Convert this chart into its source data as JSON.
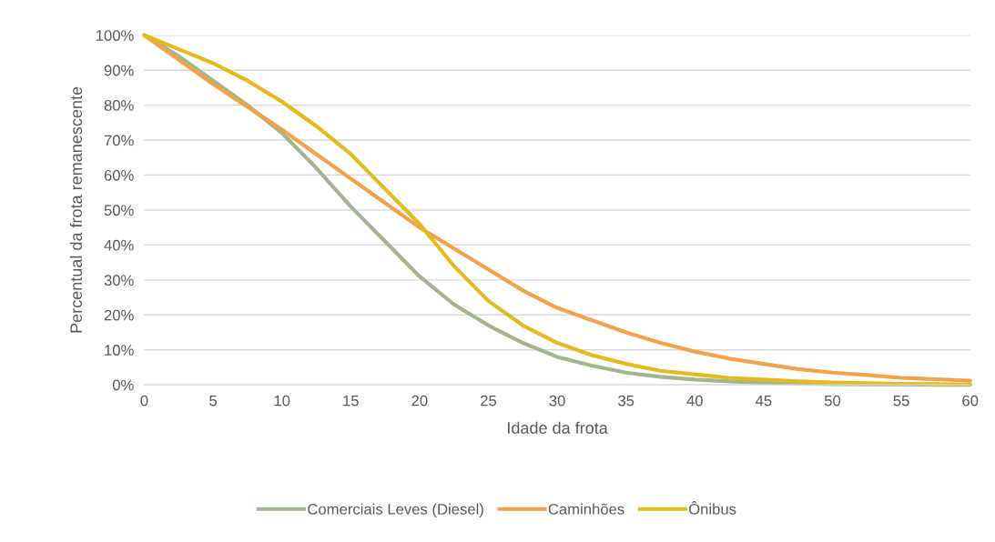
{
  "chart_data": {
    "type": "line",
    "xlabel": "Idade da frota",
    "ylabel": "Percentual da frota remanescente",
    "x": [
      0,
      2.5,
      5,
      7.5,
      10,
      12.5,
      15,
      17.5,
      20,
      22.5,
      25,
      27.5,
      30,
      32.5,
      35,
      37.5,
      40,
      42.5,
      45,
      47.5,
      50,
      52.5,
      55,
      57.5,
      60
    ],
    "series": [
      {
        "name": "Comerciais Leves (Diesel)",
        "color": "#9fb78c",
        "values": [
          100,
          94,
          87,
          80,
          72,
          62,
          51,
          41,
          31,
          23,
          17,
          12,
          8,
          5.5,
          3.5,
          2.3,
          1.5,
          1,
          0.6,
          0.4,
          0.2,
          0.1,
          0.1,
          0,
          0
        ]
      },
      {
        "name": "Caminhões",
        "color": "#f3a24a",
        "values": [
          100,
          93,
          86,
          79.5,
          73,
          66,
          59,
          52,
          45,
          39,
          33,
          27,
          22,
          18.5,
          15,
          12,
          9.5,
          7.5,
          6,
          4.5,
          3.5,
          2.8,
          2,
          1.6,
          1.2
        ]
      },
      {
        "name": "Ônibus",
        "color": "#e6b91e",
        "values": [
          100,
          96,
          92,
          87,
          81,
          74,
          66,
          56,
          46,
          34,
          24,
          17,
          12,
          8.5,
          6,
          4,
          3,
          2,
          1.5,
          1,
          0.7,
          0.5,
          0.3,
          0.2,
          0.1
        ]
      }
    ],
    "xlim": [
      0,
      60
    ],
    "xticks": [
      0,
      5,
      10,
      15,
      20,
      25,
      30,
      35,
      40,
      45,
      50,
      55,
      60
    ],
    "ylim": [
      0,
      100
    ],
    "yticks": [
      {
        "value": 0,
        "label": "0%"
      },
      {
        "value": 10,
        "label": "10%"
      },
      {
        "value": 20,
        "label": "20%"
      },
      {
        "value": 30,
        "label": "30%"
      },
      {
        "value": 40,
        "label": "40%"
      },
      {
        "value": 50,
        "label": "50%"
      },
      {
        "value": 60,
        "label": "60%"
      },
      {
        "value": 70,
        "label": "70%"
      },
      {
        "value": 80,
        "label": "80%"
      },
      {
        "value": 90,
        "label": "90%"
      },
      {
        "value": 100,
        "label": "100%"
      }
    ],
    "grid": "y",
    "legend": "bottom",
    "marker": "none",
    "line_style": "solid"
  }
}
